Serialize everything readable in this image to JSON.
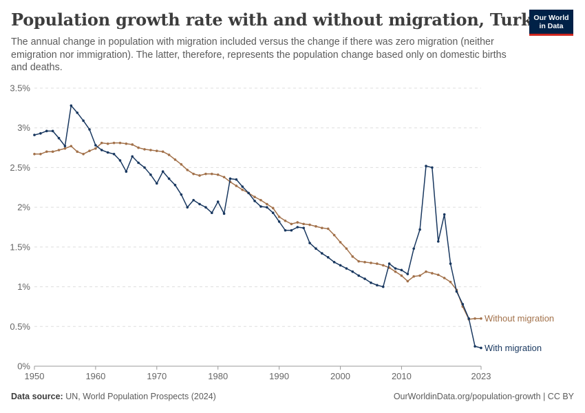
{
  "header": {
    "title": "Population growth rate with and without migration, Turkey",
    "subtitle": "The annual change in population with migration included versus the change if there was zero migration (neither emigration nor immigration). The latter, therefore, represents the population change based only on domestic births and deaths."
  },
  "logo": {
    "text": "Our World\nin Data",
    "bg_color": "#002147",
    "accent_color": "#ce261e"
  },
  "footer": {
    "source_label": "Data source:",
    "source_text": "UN, World Population Prospects (2024)",
    "link": "OurWorldinData.org/population-growth | CC BY"
  },
  "chart_data": {
    "type": "line",
    "xlim": [
      1950,
      2023
    ],
    "ylim": [
      0,
      3.5
    ],
    "yticks": [
      0,
      0.5,
      1,
      1.5,
      2,
      2.5,
      3,
      3.5
    ],
    "ytick_labels": [
      "0%",
      "0.5%",
      "1%",
      "1.5%",
      "2%",
      "2.5%",
      "3%",
      "3.5%"
    ],
    "xticks": [
      1950,
      1960,
      1970,
      1980,
      1990,
      2000,
      2010,
      2023
    ],
    "xtick_labels": [
      "1950",
      "1960",
      "1970",
      "1980",
      "1990",
      "2000",
      "2010",
      "2023"
    ],
    "grid": "horizontal-dashed",
    "legend": "inline-right",
    "series": [
      {
        "name": "With migration",
        "color": "#18375f",
        "start_year": 1950,
        "values": [
          2.91,
          2.93,
          2.96,
          2.96,
          2.87,
          2.77,
          3.28,
          3.19,
          3.09,
          2.98,
          2.78,
          2.72,
          2.69,
          2.67,
          2.59,
          2.45,
          2.64,
          2.56,
          2.5,
          2.41,
          2.3,
          2.45,
          2.36,
          2.28,
          2.16,
          2.0,
          2.09,
          2.04,
          2.0,
          1.93,
          2.07,
          1.92,
          2.36,
          2.35,
          2.26,
          2.18,
          2.08,
          2.01,
          2.0,
          1.93,
          1.82,
          1.71,
          1.71,
          1.75,
          1.74,
          1.55,
          1.48,
          1.42,
          1.37,
          1.31,
          1.27,
          1.23,
          1.19,
          1.14,
          1.1,
          1.05,
          1.02,
          1.0,
          1.29,
          1.23,
          1.21,
          1.16,
          1.48,
          1.72,
          2.52,
          2.5,
          1.57,
          1.91,
          1.29,
          0.94,
          0.78,
          0.6,
          0.25,
          0.23
        ]
      },
      {
        "name": "Without migration",
        "color": "#a2714a",
        "start_year": 1950,
        "values": [
          2.67,
          2.67,
          2.7,
          2.7,
          2.72,
          2.74,
          2.77,
          2.7,
          2.67,
          2.71,
          2.74,
          2.81,
          2.8,
          2.81,
          2.81,
          2.8,
          2.79,
          2.75,
          2.73,
          2.72,
          2.71,
          2.7,
          2.66,
          2.6,
          2.54,
          2.47,
          2.42,
          2.4,
          2.42,
          2.42,
          2.41,
          2.38,
          2.32,
          2.27,
          2.22,
          2.18,
          2.13,
          2.09,
          2.04,
          1.99,
          1.88,
          1.83,
          1.79,
          1.81,
          1.79,
          1.78,
          1.76,
          1.74,
          1.73,
          1.65,
          1.56,
          1.48,
          1.38,
          1.32,
          1.31,
          1.3,
          1.29,
          1.27,
          1.24,
          1.19,
          1.14,
          1.07,
          1.13,
          1.14,
          1.19,
          1.17,
          1.15,
          1.11,
          1.06,
          0.96,
          0.75,
          0.59,
          0.6,
          0.6
        ]
      }
    ]
  }
}
